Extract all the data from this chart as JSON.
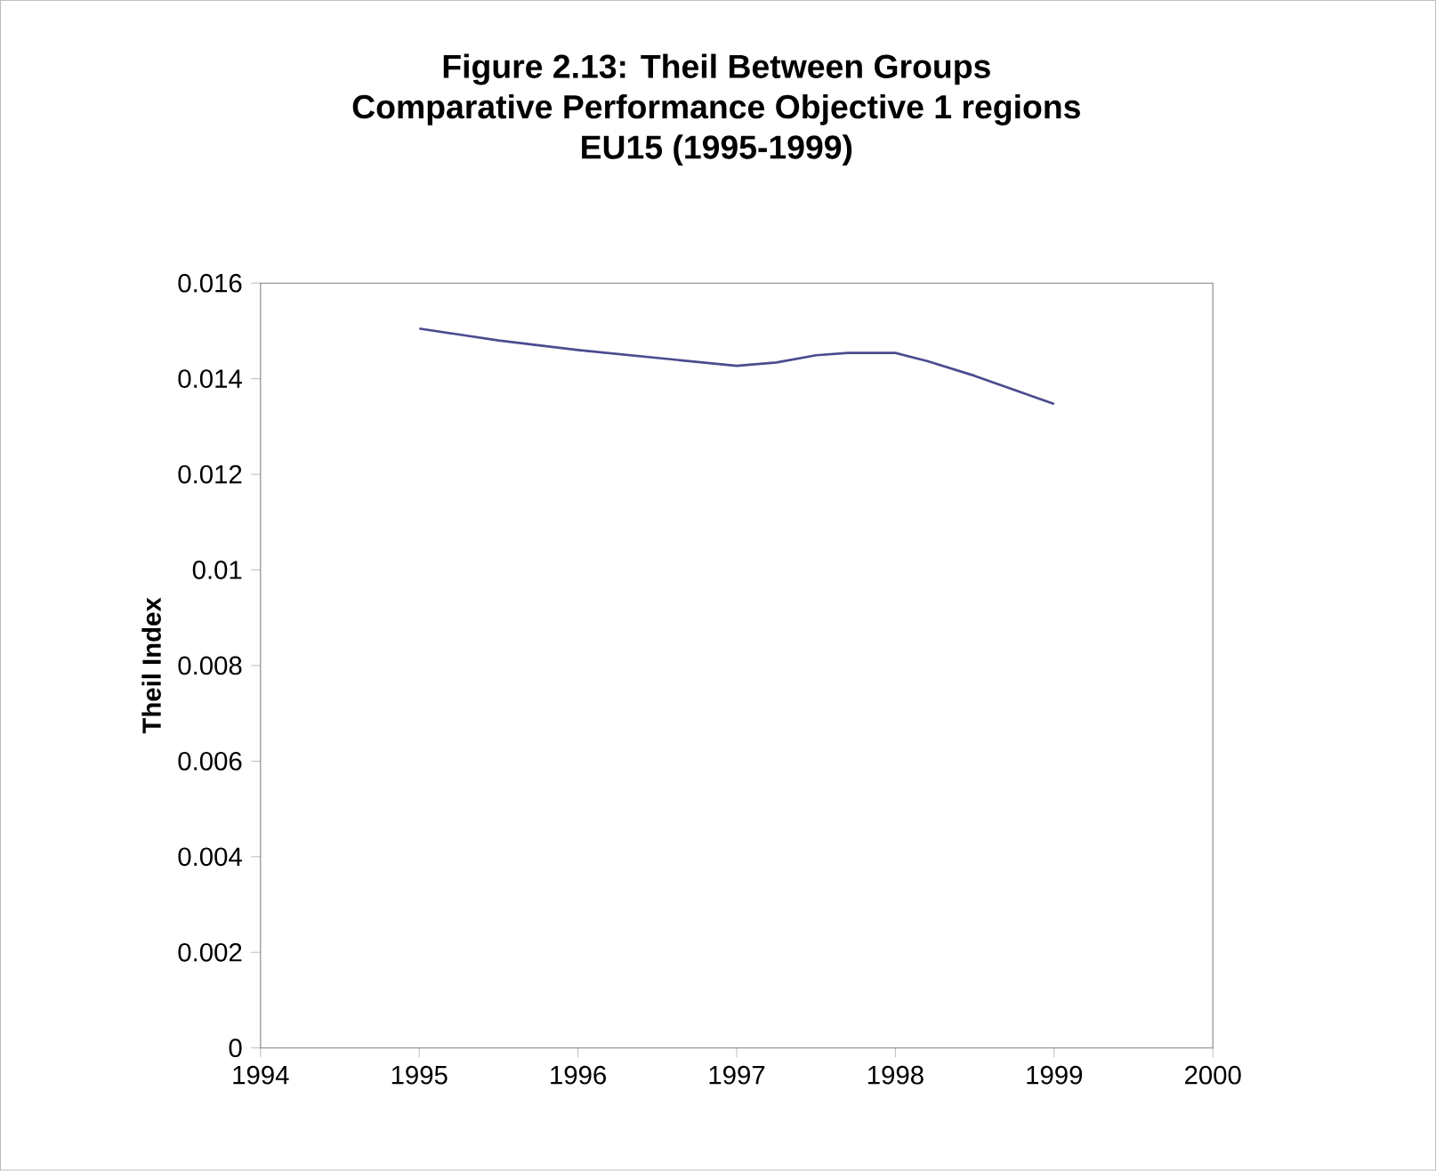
{
  "chart_data": {
    "type": "line",
    "title": "Figure 2.13: Theil Between Groups\nComparative Performance Objective 1 regions\nEU15 (1995-1999)",
    "ylabel": "Theil Index",
    "series": [
      {
        "color": "#4b4b8f",
        "x": [
          1995,
          1995.5,
          1996,
          1997,
          1997.25,
          1997.5,
          1997.7,
          1998,
          1998.2,
          1998.5,
          1999
        ],
        "values": [
          0.01505,
          0.0148,
          0.0146,
          0.01427,
          0.01434,
          0.01449,
          0.01454,
          0.01454,
          0.01437,
          0.01406,
          0.01347
        ]
      }
    ],
    "xlim": [
      1994,
      2000
    ],
    "xticks": [
      1994,
      1995,
      1996,
      1997,
      1998,
      1999,
      2000
    ],
    "ylim": [
      0,
      0.016
    ],
    "yticks": [
      0,
      0.002,
      0.004,
      0.006,
      0.008,
      0.01,
      0.012,
      0.014,
      0.016
    ],
    "grid": false,
    "marker": "none",
    "line_style": "solid"
  }
}
